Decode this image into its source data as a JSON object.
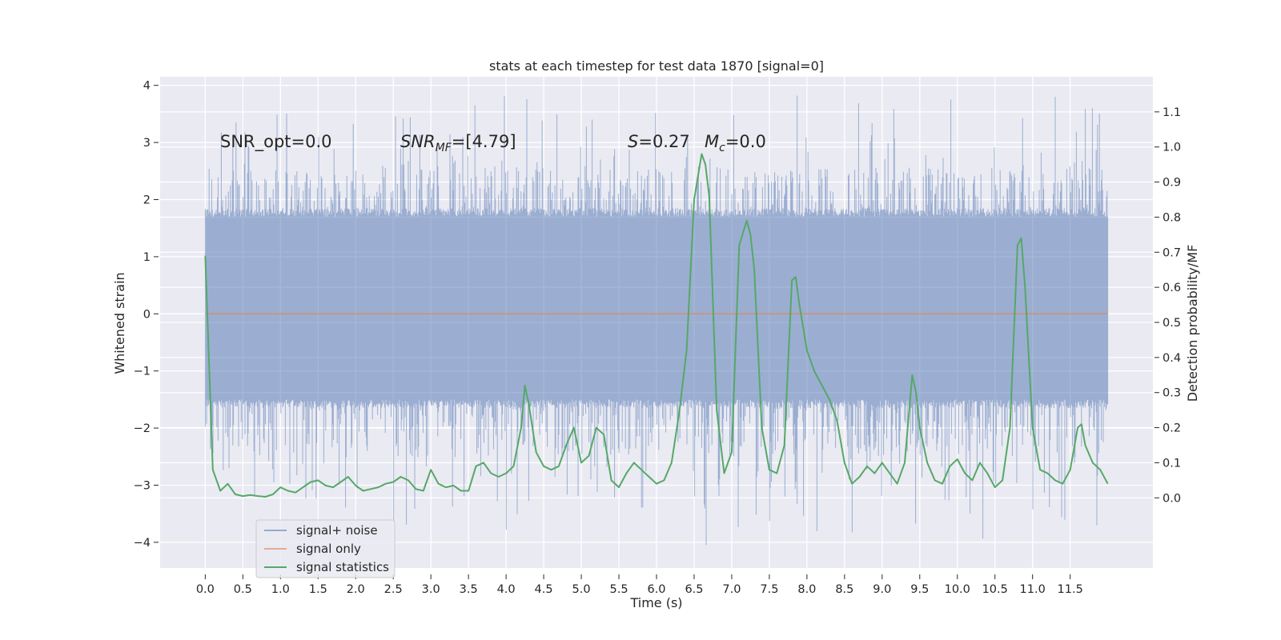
{
  "chart_data": {
    "type": "line",
    "title": "stats at each timestep for test data 1870 [signal=0]",
    "xlabel": "Time (s)",
    "ylabel_left": "Whitened strain",
    "ylabel_right": "Detection probability/MF",
    "xlim": [
      -0.6,
      12.6
    ],
    "ylim_left": [
      -4.45,
      4.15
    ],
    "ylim_right": [
      -0.2,
      1.2
    ],
    "x_ticks": [
      0.0,
      0.5,
      1.0,
      1.5,
      2.0,
      2.5,
      3.0,
      3.5,
      4.0,
      4.5,
      5.0,
      5.5,
      6.0,
      6.5,
      7.0,
      7.5,
      8.0,
      8.5,
      9.0,
      9.5,
      10.0,
      10.5,
      11.0,
      11.5
    ],
    "x_tick_labels": [
      "0.0",
      "0.5",
      "1.0",
      "1.5",
      "2.0",
      "2.5",
      "3.0",
      "3.5",
      "4.0",
      "4.5",
      "5.0",
      "5.5",
      "6.0",
      "6.5",
      "7.0",
      "7.5",
      "8.0",
      "8.5",
      "9.0",
      "9.5",
      "10.0",
      "10.5",
      "11.0",
      "11.5"
    ],
    "y_left_ticks": [
      -4,
      -3,
      -2,
      -1,
      0,
      1,
      2,
      3,
      4
    ],
    "y_left_tick_labels": [
      "−4",
      "−3",
      "−2",
      "−1",
      "0",
      "1",
      "2",
      "3",
      "4"
    ],
    "y_right_ticks": [
      0.0,
      0.1,
      0.2,
      0.3,
      0.4,
      0.5,
      0.6,
      0.7,
      0.8,
      0.9,
      1.0,
      1.1
    ],
    "y_right_tick_labels": [
      "0.0",
      "0.1",
      "0.2",
      "0.3",
      "0.4",
      "0.5",
      "0.6",
      "0.7",
      "0.8",
      "0.9",
      "1.0",
      "1.1"
    ],
    "grid": true,
    "legend_position": "lower-left",
    "background": "#eaeaf2",
    "annotations": {
      "snr_opt": "SNR_opt=0.0",
      "snr_mf_main": "SNR",
      "snr_mf_sub": "MF",
      "snr_mf_value": "=[4.79]",
      "stat_s_symbol": "S",
      "stat_s_value": "=0.27",
      "mc_symbol": "M",
      "mc_sub": "c",
      "mc_value": "=0.0"
    },
    "series": [
      {
        "name": "signal+ noise",
        "axis": "left",
        "color": "#4c72b0",
        "style": "dense noise band",
        "x_range": [
          0.0,
          12.0
        ],
        "typical_extent": [
          -1.5,
          1.7
        ],
        "peak_extent": [
          -4.1,
          3.8
        ]
      },
      {
        "name": "signal only",
        "axis": "left",
        "color": "#dd8452",
        "x": [
          0.0,
          12.0
        ],
        "y": [
          0.0,
          0.0
        ]
      },
      {
        "name": "signal statistics",
        "axis": "right",
        "color": "#55a868",
        "x": [
          0.0,
          0.1,
          0.2,
          0.3,
          0.4,
          0.5,
          0.6,
          0.7,
          0.8,
          0.9,
          1.0,
          1.1,
          1.2,
          1.3,
          1.4,
          1.5,
          1.6,
          1.7,
          1.8,
          1.9,
          2.0,
          2.1,
          2.2,
          2.3,
          2.4,
          2.5,
          2.6,
          2.7,
          2.8,
          2.9,
          3.0,
          3.1,
          3.2,
          3.3,
          3.4,
          3.5,
          3.6,
          3.7,
          3.8,
          3.9,
          4.0,
          4.1,
          4.2,
          4.25,
          4.3,
          4.4,
          4.5,
          4.6,
          4.7,
          4.8,
          4.9,
          5.0,
          5.1,
          5.2,
          5.3,
          5.4,
          5.5,
          5.6,
          5.7,
          5.8,
          5.9,
          6.0,
          6.1,
          6.2,
          6.3,
          6.4,
          6.5,
          6.6,
          6.65,
          6.7,
          6.8,
          6.9,
          7.0,
          7.1,
          7.2,
          7.25,
          7.3,
          7.4,
          7.5,
          7.6,
          7.7,
          7.8,
          7.85,
          7.9,
          8.0,
          8.1,
          8.2,
          8.3,
          8.4,
          8.5,
          8.6,
          8.7,
          8.8,
          8.9,
          9.0,
          9.1,
          9.2,
          9.3,
          9.4,
          9.45,
          9.5,
          9.6,
          9.7,
          9.8,
          9.9,
          10.0,
          10.1,
          10.2,
          10.3,
          10.4,
          10.5,
          10.6,
          10.7,
          10.8,
          10.85,
          10.9,
          11.0,
          11.1,
          11.2,
          11.3,
          11.4,
          11.5,
          11.6,
          11.65,
          11.7,
          11.8,
          11.9,
          12.0
        ],
        "y": [
          0.69,
          0.08,
          0.02,
          0.04,
          0.01,
          0.005,
          0.008,
          0.005,
          0.003,
          0.01,
          0.03,
          0.02,
          0.015,
          0.03,
          0.045,
          0.05,
          0.035,
          0.03,
          0.045,
          0.06,
          0.035,
          0.02,
          0.025,
          0.03,
          0.04,
          0.045,
          0.06,
          0.05,
          0.025,
          0.02,
          0.08,
          0.04,
          0.03,
          0.035,
          0.02,
          0.02,
          0.09,
          0.1,
          0.07,
          0.06,
          0.07,
          0.09,
          0.2,
          0.32,
          0.27,
          0.13,
          0.09,
          0.08,
          0.09,
          0.15,
          0.2,
          0.1,
          0.12,
          0.2,
          0.18,
          0.05,
          0.03,
          0.07,
          0.1,
          0.08,
          0.06,
          0.04,
          0.05,
          0.1,
          0.24,
          0.42,
          0.85,
          0.98,
          0.95,
          0.86,
          0.25,
          0.07,
          0.13,
          0.72,
          0.79,
          0.75,
          0.65,
          0.2,
          0.08,
          0.07,
          0.15,
          0.62,
          0.63,
          0.55,
          0.42,
          0.36,
          0.32,
          0.28,
          0.22,
          0.1,
          0.04,
          0.06,
          0.09,
          0.07,
          0.1,
          0.07,
          0.04,
          0.1,
          0.35,
          0.3,
          0.2,
          0.1,
          0.05,
          0.04,
          0.09,
          0.11,
          0.07,
          0.05,
          0.1,
          0.07,
          0.03,
          0.05,
          0.2,
          0.72,
          0.74,
          0.6,
          0.2,
          0.08,
          0.07,
          0.05,
          0.04,
          0.08,
          0.2,
          0.21,
          0.15,
          0.1,
          0.08,
          0.04
        ]
      }
    ]
  }
}
